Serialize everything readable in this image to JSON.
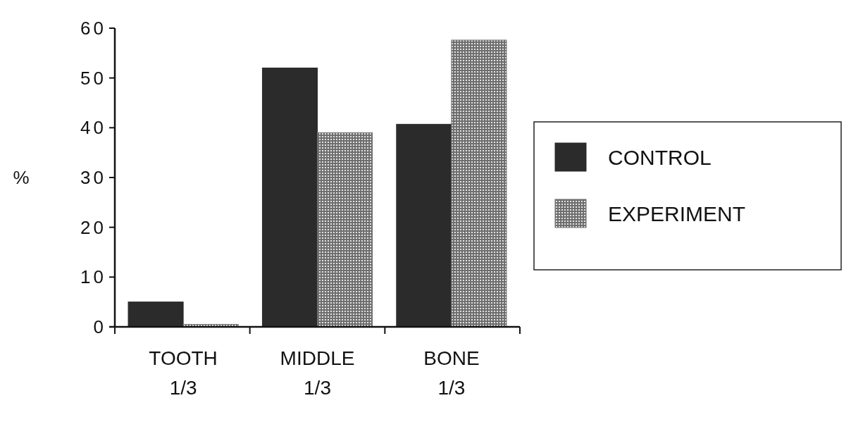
{
  "chart_data": {
    "type": "bar",
    "ylabel": "%",
    "categories": [
      "TOOTH\n1/3",
      "MIDDLE\n1/3",
      "BONE\n1/3"
    ],
    "series": [
      {
        "name": "CONTROL",
        "color": "#2b2b2b",
        "values": [
          5,
          52,
          40.7
        ]
      },
      {
        "name": "EXPERIMENT",
        "color": "#6e6e6e",
        "values": [
          0.5,
          39,
          57.6
        ]
      }
    ],
    "ylim": [
      0,
      60
    ],
    "yticks": [
      0,
      10,
      20,
      30,
      40,
      50,
      60
    ],
    "legend": "right",
    "grid": false
  }
}
